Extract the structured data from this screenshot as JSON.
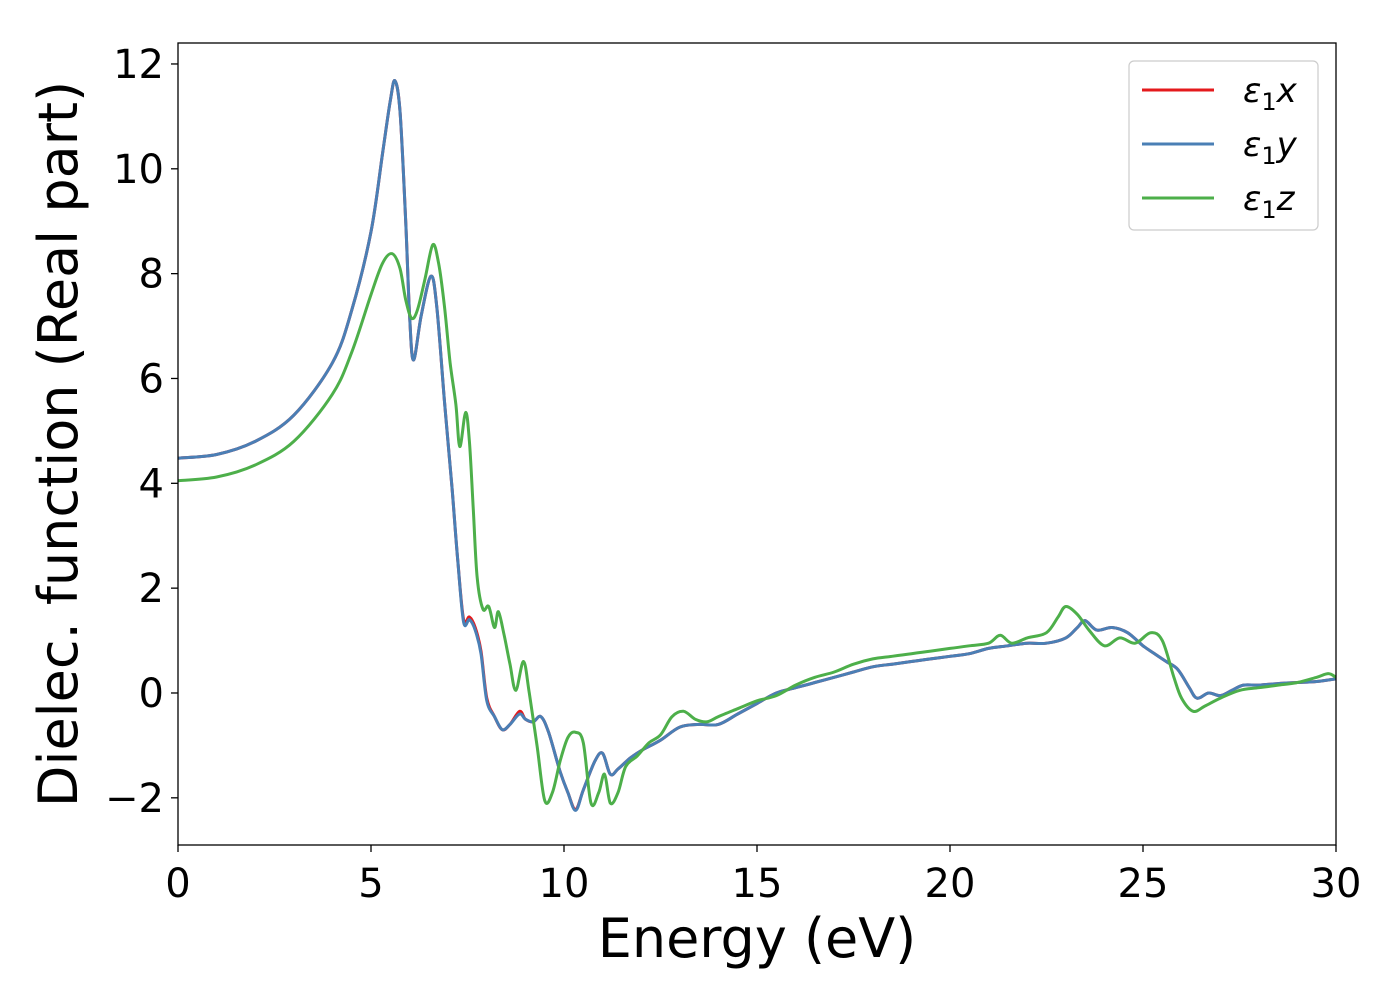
{
  "chart_data": {
    "type": "line",
    "xlabel": "Energy (eV)",
    "ylabel": "Dielec. function (Real part)",
    "xlim": [
      0,
      30
    ],
    "ylim": [
      -2.9,
      12.4
    ],
    "xticks": [
      0,
      5,
      10,
      15,
      20,
      25,
      30
    ],
    "xtick_labels": [
      "0",
      "5",
      "10",
      "15",
      "20",
      "25",
      "30"
    ],
    "yticks": [
      -2,
      0,
      2,
      4,
      6,
      8,
      10,
      12
    ],
    "ytick_labels": [
      "−2",
      "0",
      "2",
      "4",
      "6",
      "8",
      "10",
      "12"
    ],
    "grid": false,
    "legend_position": "top-right",
    "series": [
      {
        "name": "ε1x",
        "legend_base": "ε",
        "legend_sub": "1",
        "legend_tail": "x",
        "color": "#e41a1c",
        "points": [
          [
            0,
            4.48
          ],
          [
            1,
            4.55
          ],
          [
            2,
            4.8
          ],
          [
            3,
            5.3
          ],
          [
            4,
            6.3
          ],
          [
            4.5,
            7.3
          ],
          [
            5,
            8.8
          ],
          [
            5.3,
            10.3
          ],
          [
            5.5,
            11.3
          ],
          [
            5.62,
            11.68
          ],
          [
            5.75,
            11.1
          ],
          [
            5.9,
            9.0
          ],
          [
            6.0,
            7.2
          ],
          [
            6.1,
            6.35
          ],
          [
            6.3,
            7.2
          ],
          [
            6.55,
            7.95
          ],
          [
            6.7,
            7.4
          ],
          [
            6.9,
            5.6
          ],
          [
            7.1,
            3.9
          ],
          [
            7.25,
            2.5
          ],
          [
            7.4,
            1.4
          ],
          [
            7.55,
            1.45
          ],
          [
            7.7,
            1.25
          ],
          [
            7.85,
            0.8
          ],
          [
            8.0,
            -0.1
          ],
          [
            8.2,
            -0.45
          ],
          [
            8.4,
            -0.7
          ],
          [
            8.6,
            -0.6
          ],
          [
            8.85,
            -0.35
          ],
          [
            9.0,
            -0.5
          ],
          [
            9.2,
            -0.55
          ],
          [
            9.4,
            -0.45
          ],
          [
            9.6,
            -0.75
          ],
          [
            9.9,
            -1.5
          ],
          [
            10.1,
            -1.9
          ],
          [
            10.3,
            -2.22
          ],
          [
            10.5,
            -1.85
          ],
          [
            10.8,
            -1.3
          ],
          [
            11.0,
            -1.15
          ],
          [
            11.2,
            -1.55
          ],
          [
            11.4,
            -1.45
          ],
          [
            11.7,
            -1.25
          ],
          [
            12.0,
            -1.1
          ],
          [
            12.5,
            -0.9
          ],
          [
            13.0,
            -0.65
          ],
          [
            13.5,
            -0.6
          ],
          [
            14.0,
            -0.6
          ],
          [
            14.5,
            -0.4
          ],
          [
            15.0,
            -0.2
          ],
          [
            15.5,
            0.0
          ],
          [
            16.0,
            0.1
          ],
          [
            16.5,
            0.2
          ],
          [
            17.0,
            0.3
          ],
          [
            17.5,
            0.4
          ],
          [
            18.0,
            0.5
          ],
          [
            18.5,
            0.55
          ],
          [
            19.0,
            0.6
          ],
          [
            19.5,
            0.65
          ],
          [
            20.0,
            0.7
          ],
          [
            20.5,
            0.75
          ],
          [
            21.0,
            0.85
          ],
          [
            21.5,
            0.9
          ],
          [
            22.0,
            0.95
          ],
          [
            22.5,
            0.95
          ],
          [
            23.0,
            1.05
          ],
          [
            23.3,
            1.25
          ],
          [
            23.5,
            1.38
          ],
          [
            23.8,
            1.2
          ],
          [
            24.2,
            1.25
          ],
          [
            24.6,
            1.15
          ],
          [
            25.0,
            0.9
          ],
          [
            25.3,
            0.75
          ],
          [
            25.6,
            0.6
          ],
          [
            25.9,
            0.45
          ],
          [
            26.2,
            0.1
          ],
          [
            26.4,
            -0.1
          ],
          [
            26.7,
            0.0
          ],
          [
            27.0,
            -0.05
          ],
          [
            27.3,
            0.05
          ],
          [
            27.6,
            0.15
          ],
          [
            28.0,
            0.15
          ],
          [
            28.5,
            0.18
          ],
          [
            29.0,
            0.2
          ],
          [
            29.5,
            0.22
          ],
          [
            30.0,
            0.27
          ]
        ]
      },
      {
        "name": "ε1y",
        "legend_base": "ε",
        "legend_sub": "1",
        "legend_tail": "y",
        "color": "#4a7fb5",
        "points": [
          [
            0,
            4.48
          ],
          [
            1,
            4.55
          ],
          [
            2,
            4.8
          ],
          [
            3,
            5.3
          ],
          [
            4,
            6.3
          ],
          [
            4.5,
            7.3
          ],
          [
            5,
            8.8
          ],
          [
            5.3,
            10.3
          ],
          [
            5.5,
            11.3
          ],
          [
            5.62,
            11.68
          ],
          [
            5.75,
            11.1
          ],
          [
            5.9,
            9.0
          ],
          [
            6.0,
            7.2
          ],
          [
            6.1,
            6.35
          ],
          [
            6.3,
            7.2
          ],
          [
            6.55,
            7.95
          ],
          [
            6.7,
            7.4
          ],
          [
            6.9,
            5.6
          ],
          [
            7.1,
            3.9
          ],
          [
            7.25,
            2.5
          ],
          [
            7.4,
            1.35
          ],
          [
            7.55,
            1.4
          ],
          [
            7.7,
            1.2
          ],
          [
            7.85,
            0.75
          ],
          [
            8.0,
            -0.15
          ],
          [
            8.2,
            -0.45
          ],
          [
            8.4,
            -0.7
          ],
          [
            8.6,
            -0.6
          ],
          [
            8.85,
            -0.4
          ],
          [
            9.0,
            -0.5
          ],
          [
            9.2,
            -0.55
          ],
          [
            9.4,
            -0.45
          ],
          [
            9.6,
            -0.75
          ],
          [
            9.9,
            -1.5
          ],
          [
            10.1,
            -1.9
          ],
          [
            10.3,
            -2.24
          ],
          [
            10.5,
            -1.85
          ],
          [
            10.8,
            -1.3
          ],
          [
            11.0,
            -1.15
          ],
          [
            11.2,
            -1.55
          ],
          [
            11.4,
            -1.45
          ],
          [
            11.7,
            -1.25
          ],
          [
            12.0,
            -1.1
          ],
          [
            12.5,
            -0.9
          ],
          [
            13.0,
            -0.65
          ],
          [
            13.5,
            -0.6
          ],
          [
            14.0,
            -0.6
          ],
          [
            14.5,
            -0.4
          ],
          [
            15.0,
            -0.2
          ],
          [
            15.5,
            0.0
          ],
          [
            16.0,
            0.1
          ],
          [
            16.5,
            0.2
          ],
          [
            17.0,
            0.3
          ],
          [
            17.5,
            0.4
          ],
          [
            18.0,
            0.5
          ],
          [
            18.5,
            0.55
          ],
          [
            19.0,
            0.6
          ],
          [
            19.5,
            0.65
          ],
          [
            20.0,
            0.7
          ],
          [
            20.5,
            0.75
          ],
          [
            21.0,
            0.85
          ],
          [
            21.5,
            0.9
          ],
          [
            22.0,
            0.95
          ],
          [
            22.5,
            0.95
          ],
          [
            23.0,
            1.05
          ],
          [
            23.3,
            1.25
          ],
          [
            23.5,
            1.38
          ],
          [
            23.8,
            1.2
          ],
          [
            24.2,
            1.25
          ],
          [
            24.6,
            1.15
          ],
          [
            25.0,
            0.9
          ],
          [
            25.3,
            0.75
          ],
          [
            25.6,
            0.6
          ],
          [
            25.9,
            0.45
          ],
          [
            26.2,
            0.1
          ],
          [
            26.4,
            -0.1
          ],
          [
            26.7,
            0.0
          ],
          [
            27.0,
            -0.05
          ],
          [
            27.3,
            0.05
          ],
          [
            27.6,
            0.15
          ],
          [
            28.0,
            0.15
          ],
          [
            28.5,
            0.18
          ],
          [
            29.0,
            0.2
          ],
          [
            29.5,
            0.22
          ],
          [
            30.0,
            0.27
          ]
        ]
      },
      {
        "name": "ε1z",
        "legend_base": "ε",
        "legend_sub": "1",
        "legend_tail": "z",
        "color": "#4daf4a",
        "points": [
          [
            0,
            4.05
          ],
          [
            1,
            4.12
          ],
          [
            2,
            4.35
          ],
          [
            3,
            4.8
          ],
          [
            4,
            5.7
          ],
          [
            4.5,
            6.5
          ],
          [
            5,
            7.6
          ],
          [
            5.3,
            8.2
          ],
          [
            5.55,
            8.38
          ],
          [
            5.75,
            8.1
          ],
          [
            5.9,
            7.5
          ],
          [
            6.05,
            7.15
          ],
          [
            6.2,
            7.3
          ],
          [
            6.4,
            7.9
          ],
          [
            6.6,
            8.55
          ],
          [
            6.75,
            8.2
          ],
          [
            6.9,
            7.4
          ],
          [
            7.05,
            6.3
          ],
          [
            7.2,
            5.5
          ],
          [
            7.3,
            4.7
          ],
          [
            7.45,
            5.35
          ],
          [
            7.55,
            4.8
          ],
          [
            7.65,
            3.5
          ],
          [
            7.75,
            2.2
          ],
          [
            7.9,
            1.6
          ],
          [
            8.05,
            1.65
          ],
          [
            8.2,
            1.25
          ],
          [
            8.3,
            1.55
          ],
          [
            8.45,
            1.1
          ],
          [
            8.6,
            0.55
          ],
          [
            8.75,
            0.05
          ],
          [
            8.95,
            0.6
          ],
          [
            9.1,
            0.0
          ],
          [
            9.3,
            -1.0
          ],
          [
            9.5,
            -2.05
          ],
          [
            9.7,
            -1.9
          ],
          [
            9.9,
            -1.3
          ],
          [
            10.1,
            -0.85
          ],
          [
            10.3,
            -0.75
          ],
          [
            10.5,
            -0.95
          ],
          [
            10.7,
            -2.1
          ],
          [
            10.9,
            -1.9
          ],
          [
            11.05,
            -1.55
          ],
          [
            11.2,
            -2.1
          ],
          [
            11.4,
            -1.9
          ],
          [
            11.6,
            -1.4
          ],
          [
            11.9,
            -1.2
          ],
          [
            12.2,
            -0.95
          ],
          [
            12.5,
            -0.8
          ],
          [
            12.8,
            -0.45
          ],
          [
            13.1,
            -0.35
          ],
          [
            13.4,
            -0.5
          ],
          [
            13.7,
            -0.55
          ],
          [
            14.0,
            -0.45
          ],
          [
            14.5,
            -0.3
          ],
          [
            15.0,
            -0.15
          ],
          [
            15.5,
            -0.05
          ],
          [
            16.0,
            0.15
          ],
          [
            16.5,
            0.3
          ],
          [
            17.0,
            0.4
          ],
          [
            17.5,
            0.55
          ],
          [
            18.0,
            0.65
          ],
          [
            18.5,
            0.7
          ],
          [
            19.0,
            0.75
          ],
          [
            19.5,
            0.8
          ],
          [
            20.0,
            0.85
          ],
          [
            20.5,
            0.9
          ],
          [
            21.0,
            0.95
          ],
          [
            21.3,
            1.1
          ],
          [
            21.6,
            0.95
          ],
          [
            22.0,
            1.05
          ],
          [
            22.5,
            1.15
          ],
          [
            22.8,
            1.45
          ],
          [
            23.0,
            1.65
          ],
          [
            23.3,
            1.5
          ],
          [
            23.6,
            1.2
          ],
          [
            24.0,
            0.9
          ],
          [
            24.4,
            1.05
          ],
          [
            24.8,
            0.95
          ],
          [
            25.2,
            1.15
          ],
          [
            25.5,
            1.0
          ],
          [
            25.8,
            0.3
          ],
          [
            26.0,
            -0.1
          ],
          [
            26.3,
            -0.35
          ],
          [
            26.6,
            -0.25
          ],
          [
            27.0,
            -0.1
          ],
          [
            27.5,
            0.05
          ],
          [
            28.0,
            0.1
          ],
          [
            28.5,
            0.15
          ],
          [
            29.0,
            0.2
          ],
          [
            29.5,
            0.3
          ],
          [
            29.8,
            0.37
          ],
          [
            30.0,
            0.3
          ]
        ]
      }
    ]
  }
}
